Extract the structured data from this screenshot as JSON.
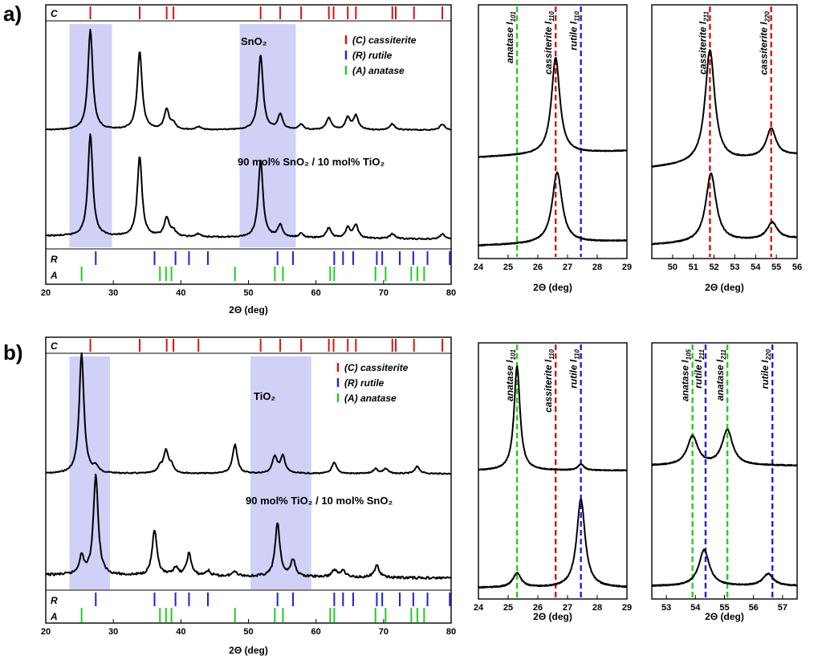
{
  "chart_data": [
    {
      "panel": "a)",
      "id": "a-main",
      "type": "line",
      "xlabel": "2Θ (deg)",
      "xlim": [
        20,
        80
      ],
      "xticks": [
        20,
        30,
        40,
        50,
        60,
        70,
        80
      ],
      "highlight_regions": [
        [
          23.5,
          29.8
        ],
        [
          48.7,
          57.0
        ]
      ],
      "legend": [
        {
          "label": "(C) cassiterite",
          "color": "#dd1111"
        },
        {
          "label": "(R) rutile",
          "color": "#1f1fdd"
        },
        {
          "label": "(A) anatase",
          "color": "#22cc22"
        }
      ],
      "reference_rows": [
        {
          "label": "C",
          "color": "#dd1111",
          "positions": [
            26.6,
            33.9,
            37.9,
            38.9,
            51.8,
            54.7,
            57.8,
            61.9,
            62.6,
            64.7,
            65.9,
            71.3,
            71.8,
            74.5,
            78.7
          ]
        },
        {
          "label": "R",
          "color": "#1f1fdd",
          "positions": [
            27.4,
            36.1,
            39.2,
            41.2,
            44.0,
            54.3,
            56.6,
            62.7,
            64.0,
            65.5,
            69.0,
            69.8,
            72.4,
            74.4,
            76.5,
            79.8
          ]
        },
        {
          "label": "A",
          "color": "#22cc22",
          "positions": [
            25.3,
            36.9,
            37.8,
            38.6,
            48.0,
            53.9,
            55.1,
            62.1,
            62.7,
            68.8,
            70.3,
            74.1,
            75.0,
            76.0
          ]
        }
      ],
      "series": [
        {
          "name": "SnO₂",
          "peaks": [
            [
              26.6,
              100
            ],
            [
              33.9,
              78
            ],
            [
              37.9,
              20
            ],
            [
              38.9,
              6
            ],
            [
              42.6,
              3
            ],
            [
              51.8,
              75
            ],
            [
              54.7,
              15
            ],
            [
              57.8,
              5
            ],
            [
              61.9,
              12
            ],
            [
              64.7,
              12
            ],
            [
              65.9,
              14
            ],
            [
              71.3,
              6
            ],
            [
              78.7,
              6
            ]
          ]
        },
        {
          "name": "90 mol% SnO₂ / 10 mol% TiO₂",
          "peaks": [
            [
              26.6,
              100
            ],
            [
              33.9,
              78
            ],
            [
              37.9,
              18
            ],
            [
              38.9,
              6
            ],
            [
              42.6,
              3
            ],
            [
              51.8,
              75
            ],
            [
              54.7,
              12
            ],
            [
              57.8,
              4
            ],
            [
              61.9,
              10
            ],
            [
              64.7,
              10
            ],
            [
              65.9,
              13
            ],
            [
              71.3,
              5
            ],
            [
              78.7,
              5
            ]
          ]
        }
      ]
    },
    {
      "panel": "a)",
      "id": "a-zoom1",
      "type": "line",
      "xlabel": "2Θ (deg)",
      "xlim": [
        24,
        29
      ],
      "xticks": [
        24,
        25,
        26,
        27,
        28,
        29
      ],
      "reference_lines": [
        {
          "label": "anatase I101",
          "x": 25.3,
          "color": "#22cc22"
        },
        {
          "label": "cassiterite I110",
          "x": 26.6,
          "color": "#dd1111"
        },
        {
          "label": "rutile I110",
          "x": 27.45,
          "color": "#1f1fdd"
        }
      ],
      "series": [
        {
          "peaks": [
            [
              26.6,
              100
            ]
          ]
        },
        {
          "peaks": [
            [
              26.65,
              90
            ]
          ]
        }
      ]
    },
    {
      "panel": "a)",
      "id": "a-zoom2",
      "type": "line",
      "xlabel": "2Θ (deg)",
      "xlim": [
        49,
        56
      ],
      "xticks": [
        50,
        51,
        52,
        53,
        54,
        55,
        56
      ],
      "reference_lines": [
        {
          "label": "cassiterite I211",
          "x": 51.8,
          "color": "#dd1111"
        },
        {
          "label": "cassiterite I220",
          "x": 54.75,
          "color": "#dd1111"
        }
      ],
      "series": [
        {
          "peaks": [
            [
              51.8,
              100
            ],
            [
              54.75,
              25
            ]
          ]
        },
        {
          "peaks": [
            [
              51.85,
              90
            ],
            [
              54.8,
              22
            ]
          ]
        }
      ]
    },
    {
      "panel": "b)",
      "id": "b-main",
      "type": "line",
      "xlabel": "2Θ (deg)",
      "xlim": [
        20,
        80
      ],
      "xticks": [
        20,
        30,
        40,
        50,
        60,
        70,
        80
      ],
      "highlight_regions": [
        [
          23.5,
          29.5
        ],
        [
          50.3,
          59.3
        ]
      ],
      "legend": [
        {
          "label": "(C) cassiterite",
          "color": "#dd1111"
        },
        {
          "label": "(R) rutile",
          "color": "#1f1fdd"
        },
        {
          "label": "(A) anatase",
          "color": "#22cc22"
        }
      ],
      "reference_rows": [
        {
          "label": "C",
          "color": "#dd1111",
          "positions": [
            26.6,
            33.9,
            37.9,
            38.9,
            42.6,
            51.8,
            54.7,
            57.8,
            61.9,
            62.6,
            64.7,
            65.9,
            71.3,
            71.8,
            74.5,
            78.7
          ]
        },
        {
          "label": "R",
          "color": "#1f1fdd",
          "positions": [
            27.4,
            36.1,
            39.2,
            41.2,
            44.0,
            54.3,
            56.6,
            62.7,
            64.0,
            65.5,
            69.0,
            69.8,
            72.4,
            74.4,
            76.5,
            79.8
          ]
        },
        {
          "label": "A",
          "color": "#22cc22",
          "positions": [
            25.3,
            36.9,
            37.8,
            38.6,
            48.0,
            53.9,
            55.1,
            62.1,
            62.7,
            68.8,
            70.3,
            74.1,
            75.0,
            76.0
          ]
        }
      ],
      "series": [
        {
          "name": "TiO₂",
          "peaks": [
            [
              25.3,
              100
            ],
            [
              27.4,
              5
            ],
            [
              36.9,
              5
            ],
            [
              37.8,
              18
            ],
            [
              38.6,
              6
            ],
            [
              48.0,
              24
            ],
            [
              53.9,
              14
            ],
            [
              55.1,
              14
            ],
            [
              62.7,
              9
            ],
            [
              68.8,
              4
            ],
            [
              70.3,
              4
            ],
            [
              75.0,
              6
            ]
          ]
        },
        {
          "name": "90 mol% TiO₂ / 10 mol% SnO₂",
          "peaks": [
            [
              25.3,
              18
            ],
            [
              27.4,
              100
            ],
            [
              36.1,
              45
            ],
            [
              39.2,
              8
            ],
            [
              41.2,
              22
            ],
            [
              44.0,
              5
            ],
            [
              48.0,
              5
            ],
            [
              54.3,
              53
            ],
            [
              56.6,
              16
            ],
            [
              62.7,
              7
            ],
            [
              64.0,
              7
            ],
            [
              69.0,
              12
            ]
          ]
        }
      ]
    },
    {
      "panel": "b)",
      "id": "b-zoom1",
      "type": "line",
      "xlabel": "2Θ (deg)",
      "xlim": [
        24,
        29
      ],
      "xticks": [
        24,
        25,
        26,
        27,
        28,
        29
      ],
      "reference_lines": [
        {
          "label": "anatase I101",
          "x": 25.3,
          "color": "#22cc22"
        },
        {
          "label": "cassiterite I110",
          "x": 26.6,
          "color": "#dd1111"
        },
        {
          "label": "rutile I110",
          "x": 27.45,
          "color": "#1f1fdd"
        }
      ],
      "series": [
        {
          "peaks": [
            [
              25.3,
              100
            ],
            [
              27.45,
              6
            ]
          ]
        },
        {
          "peaks": [
            [
              25.3,
              16
            ],
            [
              27.45,
              100
            ]
          ]
        }
      ]
    },
    {
      "panel": "b)",
      "id": "b-zoom2",
      "type": "line",
      "xlabel": "2Θ (deg)",
      "xlim": [
        52.5,
        57.5
      ],
      "xticks": [
        53,
        54,
        55,
        56,
        57
      ],
      "reference_lines": [
        {
          "label": "anatase I105",
          "x": 53.9,
          "color": "#22cc22"
        },
        {
          "label": "rutile I211",
          "x": 54.35,
          "color": "#1f1fdd"
        },
        {
          "label": "anatase I211",
          "x": 55.1,
          "color": "#22cc22"
        },
        {
          "label": "rutile I220",
          "x": 56.65,
          "color": "#1f1fdd"
        }
      ],
      "series": [
        {
          "peaks": [
            [
              53.9,
              45
            ],
            [
              55.1,
              55
            ]
          ]
        },
        {
          "peaks": [
            [
              54.3,
              60
            ],
            [
              56.5,
              20
            ]
          ]
        }
      ]
    }
  ]
}
